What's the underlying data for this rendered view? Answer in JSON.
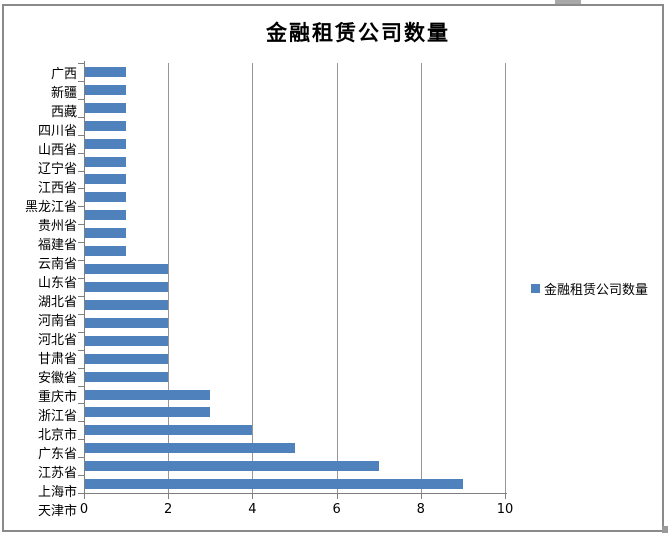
{
  "title": "金融租赁公司数量",
  "legend": {
    "label": "金融租赁公司数量",
    "swatch_color": "#4f81bd",
    "position": "right"
  },
  "colors": {
    "bar": "#4f81bd",
    "gridline": "#969696",
    "axis": "#7f7f7f",
    "border": "#8a8a8a",
    "text": "#000000"
  },
  "chart_data": {
    "type": "bar",
    "orientation": "horizontal",
    "title": "金融租赁公司数量",
    "series_name": "金融租赁公司数量",
    "categories": [
      "广西",
      "新疆",
      "西藏",
      "四川省",
      "山西省",
      "辽宁省",
      "江西省",
      "黑龙江省",
      "贵州省",
      "福建省",
      "云南省",
      "山东省",
      "湖北省",
      "河南省",
      "河北省",
      "甘肃省",
      "安徽省",
      "重庆市",
      "浙江省",
      "北京市",
      "广东省",
      "江苏省",
      "上海市",
      "天津市"
    ],
    "values": [
      1,
      1,
      1,
      1,
      1,
      1,
      1,
      1,
      1,
      1,
      1,
      2,
      2,
      2,
      2,
      2,
      2,
      2,
      3,
      3,
      4,
      5,
      7,
      9
    ],
    "xlabel": "",
    "ylabel": "",
    "xlim": [
      0,
      10
    ],
    "x_tick_labels": [
      "0",
      "2",
      "4",
      "6",
      "8",
      "10"
    ],
    "x_tick_values": [
      0,
      2,
      4,
      6,
      8,
      10
    ],
    "grid": true,
    "legend_position": "right"
  }
}
